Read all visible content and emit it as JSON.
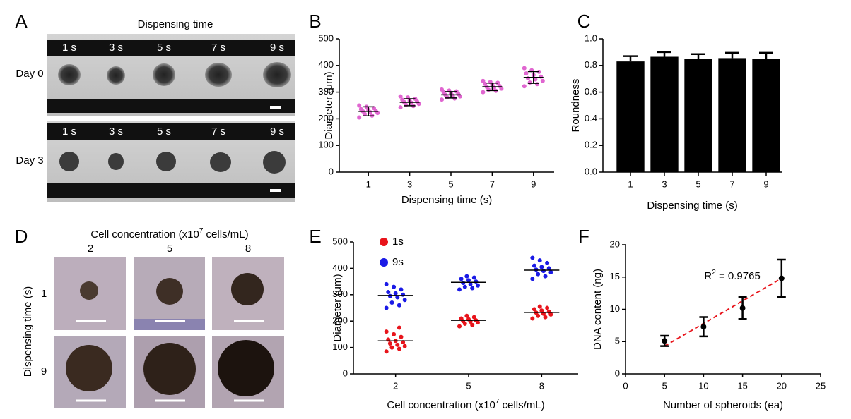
{
  "panel_labels": [
    "A",
    "B",
    "C",
    "D",
    "E",
    "F"
  ],
  "panel_a": {
    "title": "Dispensing time",
    "times": [
      "1 s",
      "3 s",
      "5 s",
      "7 s",
      "9 s"
    ],
    "rows": [
      "Day 0",
      "Day 3"
    ]
  },
  "panel_d": {
    "title_parts": [
      "Cell concentration  (x10",
      "7",
      " cells/mL)"
    ],
    "columns": [
      "2",
      "5",
      "8"
    ],
    "rows": [
      "1",
      "9"
    ],
    "row_title": "Dispensing  time  (s)"
  },
  "chart_data": [
    {
      "type": "dotplot",
      "ylabel": "Diameter (μm)",
      "xlabel": "Dispensing time (s)",
      "categories": [
        "1",
        "3",
        "5",
        "7",
        "9"
      ],
      "series": [
        {
          "color": "#e066d0",
          "values": [
            [
              205,
              212,
              218,
              222,
              225,
              228,
              230,
              233,
              236,
              240,
              245,
              250
            ],
            [
              243,
              248,
              252,
              256,
              260,
              263,
              265,
              268,
              271,
              275,
              280,
              284
            ],
            [
              272,
              276,
              280,
              284,
              287,
              290,
              293,
              296,
              300,
              303,
              306,
              310
            ],
            [
              300,
              305,
              309,
              313,
              317,
              320,
              323,
              327,
              331,
              335,
              338,
              342
            ],
            [
              322,
              330,
              336,
              342,
              348,
              352,
              358,
              364,
              370,
              376,
              382,
              390
            ]
          ],
          "mean": [
            228,
            262,
            290,
            320,
            355
          ],
          "sd": [
            17,
            13,
            12,
            14,
            22
          ]
        }
      ],
      "ylim": [
        0,
        500
      ],
      "yticks": [
        0,
        100,
        200,
        300,
        400,
        500
      ]
    },
    {
      "type": "bar",
      "ylabel": "Roundness",
      "xlabel": "Dispensing  time  (s)",
      "categories": [
        "1",
        "3",
        "5",
        "7",
        "9"
      ],
      "values": [
        0.83,
        0.865,
        0.85,
        0.855,
        0.85
      ],
      "errors": [
        0.04,
        0.035,
        0.035,
        0.04,
        0.045
      ],
      "color": "#000000",
      "ylim": [
        0,
        1
      ],
      "yticks": [
        {
          "value": 0,
          "label": "0.0"
        },
        0.2,
        0.4,
        0.6,
        0.8,
        {
          "value": 1,
          "label": "1.0"
        }
      ]
    },
    {
      "type": "dotplot",
      "ylabel": "Diameter (μm)",
      "xlabel_parts": [
        "Cell concentration  (x10",
        "7",
        " cells/mL)"
      ],
      "categories": [
        "2",
        "5",
        "8"
      ],
      "series": [
        {
          "name": "1s",
          "color": "#e8141b",
          "values": [
            [
              85,
              95,
              100,
              105,
              110,
              115,
              120,
              125,
              130,
              140,
              150,
              160,
              175
            ],
            [
              180,
              185,
              190,
              195,
              198,
              200,
              203,
              207,
              210,
              215,
              220
            ],
            [
              210,
              215,
              220,
              225,
              228,
              232,
              236,
              240,
              245,
              250,
              255
            ]
          ],
          "median": [
            125,
            203,
            233
          ]
        },
        {
          "name": "9s",
          "color": "#1a1ae6",
          "values": [
            [
              250,
              260,
              270,
              280,
              290,
              295,
              300,
              305,
              310,
              320,
              330,
              340
            ],
            [
              320,
              325,
              330,
              335,
              340,
              345,
              350,
              355,
              360,
              365,
              370
            ],
            [
              360,
              370,
              378,
              385,
              390,
              395,
              400,
              405,
              410,
              420,
              430,
              440
            ]
          ],
          "median": [
            297,
            347,
            393
          ]
        }
      ],
      "ylim": [
        0,
        500
      ],
      "yticks": [
        0,
        100,
        200,
        300,
        400,
        500
      ],
      "legend": "top-left"
    },
    {
      "type": "scatter",
      "ylabel": "DNA content  (ng)",
      "xlabel": "Number  of spheroids (ea)",
      "x": [
        5,
        10,
        15,
        20
      ],
      "values": [
        5.1,
        7.3,
        10.2,
        14.8
      ],
      "errors": [
        0.8,
        1.5,
        1.7,
        2.9
      ],
      "color": "#000000",
      "fit": {
        "x": [
          5,
          20
        ],
        "y": [
          4.3,
          14.8
        ],
        "color": "#e8141b"
      },
      "annotation_parts": [
        "R",
        "2",
        " = 0.9765"
      ],
      "xlim": [
        0,
        25
      ],
      "xticks": [
        0,
        5,
        10,
        15,
        20,
        25
      ],
      "ylim": [
        0,
        20
      ],
      "yticks": [
        0,
        5,
        10,
        15,
        20
      ]
    }
  ]
}
